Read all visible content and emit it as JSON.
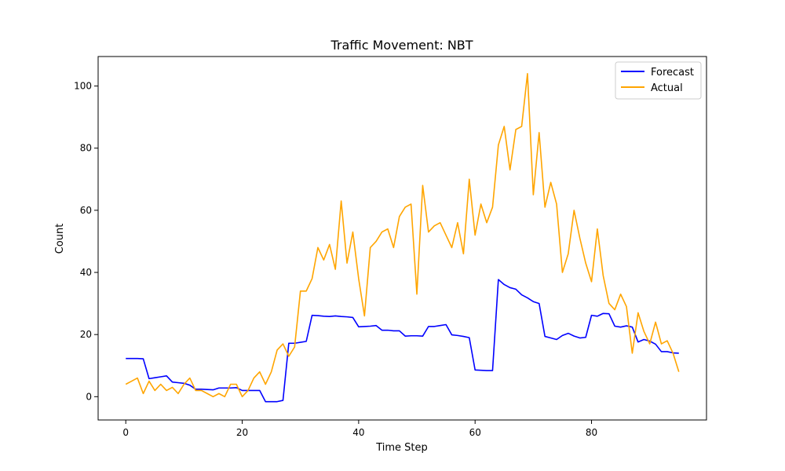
{
  "chart_data": {
    "type": "line",
    "title": "Traffic Movement: NBT",
    "xlabel": "Time Step",
    "ylabel": "Count",
    "xlim": [
      -4.75,
      99.75
    ],
    "ylim": [
      -7.5,
      109.5
    ],
    "xticks": [
      0,
      20,
      40,
      60,
      80
    ],
    "yticks": [
      0,
      20,
      40,
      60,
      80,
      100
    ],
    "legend_position": "top-right",
    "grid": false,
    "series": [
      {
        "name": "Forecast",
        "color": "#0000ff",
        "values": [
          12.3,
          12.3,
          12.3,
          12.2,
          5.8,
          6.1,
          6.4,
          6.7,
          4.7,
          4.5,
          4.3,
          3.7,
          2.4,
          2.4,
          2.3,
          2.2,
          2.8,
          2.8,
          2.8,
          2.9,
          2.0,
          2.0,
          2.0,
          2.0,
          -1.6,
          -1.6,
          -1.6,
          -1.2,
          17.2,
          17.2,
          17.5,
          17.8,
          26.2,
          26.1,
          25.9,
          25.8,
          26.0,
          25.8,
          25.7,
          25.5,
          22.5,
          22.6,
          22.7,
          22.9,
          21.4,
          21.4,
          21.2,
          21.2,
          19.5,
          19.6,
          19.6,
          19.5,
          22.6,
          22.6,
          22.9,
          23.2,
          19.9,
          19.7,
          19.4,
          19.0,
          8.6,
          8.5,
          8.4,
          8.4,
          37.7,
          36.1,
          35.1,
          34.6,
          32.8,
          31.8,
          30.6,
          30.0,
          19.4,
          18.9,
          18.4,
          19.7,
          20.4,
          19.5,
          18.9,
          19.1,
          26.2,
          25.9,
          26.8,
          26.7,
          22.7,
          22.4,
          22.8,
          22.4,
          17.6,
          18.4,
          17.9,
          16.9,
          14.5,
          14.5,
          14.1,
          14.0
        ]
      },
      {
        "name": "Actual",
        "color": "#ffa500",
        "values": [
          4,
          5,
          6,
          1,
          5,
          2,
          4,
          2,
          3,
          1,
          4,
          6,
          2,
          2,
          1,
          0,
          1,
          0,
          4,
          4,
          0,
          2,
          6,
          8,
          4,
          8,
          15,
          17,
          13,
          16,
          34,
          34,
          38,
          48,
          44,
          49,
          41,
          63,
          43,
          53,
          38,
          26,
          48,
          50,
          53,
          54,
          48,
          58,
          61,
          62,
          33,
          68,
          53,
          55,
          56,
          52,
          48,
          56,
          46,
          70,
          52,
          62,
          56,
          61,
          81,
          87,
          73,
          86,
          87,
          104,
          65,
          85,
          61,
          69,
          62,
          40,
          46,
          60,
          51,
          43,
          37,
          54,
          39,
          30,
          28,
          33,
          29,
          14,
          27,
          21,
          17,
          24,
          17,
          18,
          14,
          8
        ]
      }
    ]
  }
}
